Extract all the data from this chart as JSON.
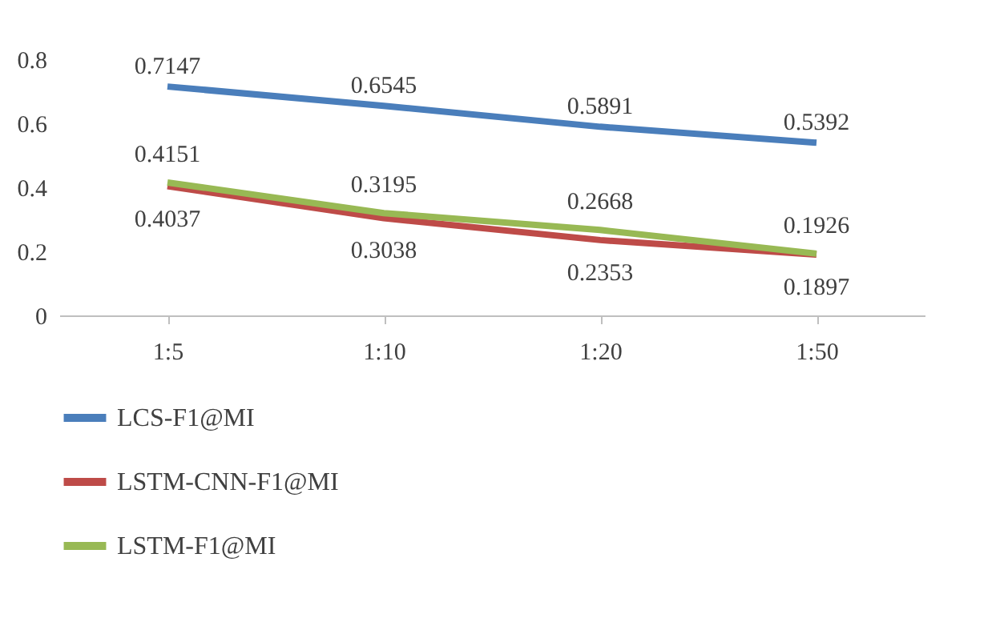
{
  "chart_data": {
    "type": "line",
    "categories": [
      "1:5",
      "1:10",
      "1:20",
      "1:50"
    ],
    "series": [
      {
        "name": "LCS-F1@MI",
        "color": "#4a7ebb",
        "values": [
          0.7147,
          0.6545,
          0.5891,
          0.5392
        ]
      },
      {
        "name": "LSTM-CNN-F1@MI",
        "color": "#be4b48",
        "values": [
          0.4037,
          0.3038,
          0.2353,
          0.1897
        ]
      },
      {
        "name": "LSTM-F1@MI",
        "color": "#98b954",
        "values": [
          0.4151,
          0.3195,
          0.2668,
          0.1926
        ]
      }
    ],
    "ylim": [
      0,
      0.8
    ],
    "yticks": [
      0,
      0.2,
      0.4,
      0.6,
      0.8
    ],
    "data_labels": true,
    "legend": "bottom",
    "marker": "none",
    "line_style": "solid"
  }
}
